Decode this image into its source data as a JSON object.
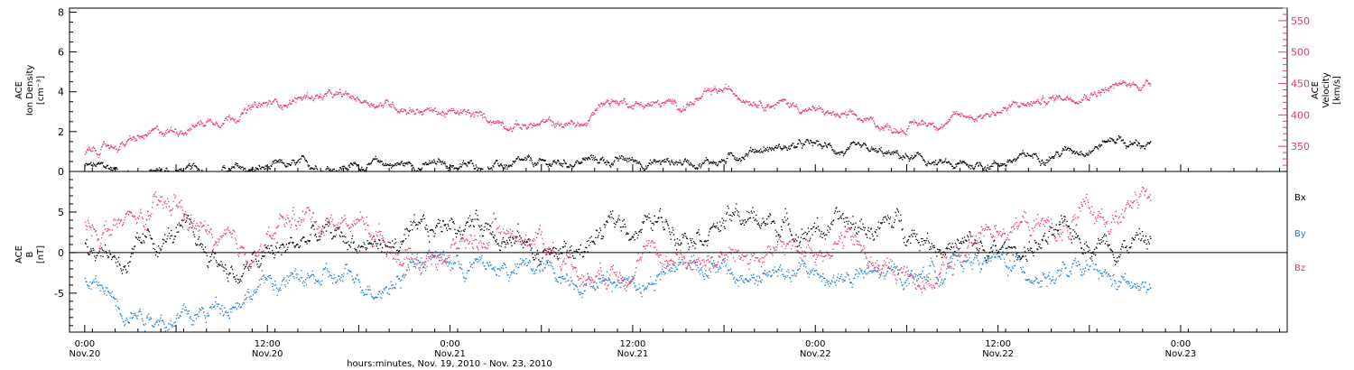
{
  "chart_data": [
    {
      "type": "scatter",
      "panel": "top",
      "left_ylabel": [
        "ACE",
        "Ion Density",
        "[cm⁻³]"
      ],
      "right_ylabel": [
        "ACE",
        "Velocity",
        "[km/s]"
      ],
      "left_yticks": [
        "0",
        "2",
        "4",
        "6",
        "8"
      ],
      "left_ylim": [
        0,
        8.2
      ],
      "right_yticks": [
        "350",
        "400",
        "450",
        "500",
        "550"
      ],
      "right_ylim": [
        310,
        570
      ],
      "series": [
        {
          "axis": "left",
          "color": "#000000",
          "knots": [
            [
              0,
              0.3
            ],
            [
              6,
              0.0
            ],
            [
              22,
              0.1
            ],
            [
              28,
              0.25
            ],
            [
              40,
              0.4
            ],
            [
              50,
              0.3
            ],
            [
              60,
              0.3
            ],
            [
              66,
              0.6
            ],
            [
              76,
              0.5
            ],
            [
              84,
              0.6
            ],
            [
              88,
              1.2
            ],
            [
              96,
              1.3
            ],
            [
              102,
              0.9
            ],
            [
              108,
              0.7
            ],
            [
              114,
              0.2
            ],
            [
              122,
              0.6
            ],
            [
              132,
              1.3
            ],
            [
              136,
              1.8
            ],
            [
              137,
              1.4
            ],
            [
              140,
              1.4
            ]
          ]
        },
        {
          "axis": "right",
          "color": "#e8386a",
          "knots": [
            [
              0,
              340
            ],
            [
              6,
              358
            ],
            [
              12,
              378
            ],
            [
              20,
              405
            ],
            [
              30,
              432
            ],
            [
              38,
              422
            ],
            [
              48,
              403
            ],
            [
              58,
              385
            ],
            [
              66,
              385
            ],
            [
              68,
              425
            ],
            [
              78,
              415
            ],
            [
              84,
              438
            ],
            [
              92,
              420
            ],
            [
              100,
              395
            ],
            [
              106,
              380
            ],
            [
              116,
              398
            ],
            [
              124,
              418
            ],
            [
              132,
              440
            ],
            [
              140,
              452
            ]
          ]
        }
      ]
    },
    {
      "type": "scatter",
      "panel": "bottom",
      "ylabel": [
        "ACE",
        "B",
        "[nT]"
      ],
      "yticks": [
        "-5",
        "0",
        "5"
      ],
      "ylim": [
        -9.8,
        10
      ],
      "legend": [
        "Bx",
        "By",
        "Bz"
      ],
      "series": [
        {
          "name": "Bx",
          "color": "#000000",
          "knots": [
            [
              0,
              2.0
            ],
            [
              6,
              -1.0
            ],
            [
              12,
              2.5
            ],
            [
              20,
              -2.5
            ],
            [
              30,
              2.0
            ],
            [
              40,
              1.0
            ],
            [
              45,
              1.5
            ],
            [
              48,
              4.0
            ],
            [
              54,
              3.8
            ],
            [
              58,
              1.0
            ],
            [
              60,
              0.0
            ],
            [
              64,
              0.0
            ],
            [
              70,
              3.5
            ],
            [
              80,
              3.8
            ],
            [
              86,
              4.2
            ],
            [
              92,
              3.5
            ],
            [
              100,
              3.0
            ],
            [
              108,
              3.5
            ],
            [
              114,
              1.0
            ],
            [
              120,
              -0.5
            ],
            [
              126,
              1.5
            ],
            [
              132,
              2.0
            ],
            [
              140,
              1.5
            ]
          ]
        },
        {
          "name": "By",
          "color": "#1a7fd4",
          "knots": [
            [
              0,
              -3.5
            ],
            [
              6,
              -6.5
            ],
            [
              14,
              -8.5
            ],
            [
              20,
              -5.0
            ],
            [
              24,
              -3.5
            ],
            [
              40,
              -3.5
            ],
            [
              44,
              0.0
            ],
            [
              50,
              -1.5
            ],
            [
              56,
              -2.0
            ],
            [
              62,
              -2.5
            ],
            [
              68,
              -3.0
            ],
            [
              74,
              -3.0
            ],
            [
              80,
              -0.5
            ],
            [
              86,
              -3.5
            ],
            [
              92,
              -2.5
            ],
            [
              100,
              -3.0
            ],
            [
              108,
              -3.0
            ],
            [
              116,
              -0.5
            ],
            [
              124,
              -2.0
            ],
            [
              132,
              -3.0
            ],
            [
              140,
              -5.0
            ]
          ]
        },
        {
          "name": "Bz",
          "color": "#e8386a",
          "knots": [
            [
              0,
              3.0
            ],
            [
              6,
              3.5
            ],
            [
              12,
              5.5
            ],
            [
              20,
              -1.0
            ],
            [
              28,
              4.5
            ],
            [
              36,
              4.0
            ],
            [
              44,
              -1.0
            ],
            [
              52,
              2.0
            ],
            [
              58,
              2.5
            ],
            [
              62,
              0.5
            ],
            [
              66,
              -2.5
            ],
            [
              72,
              -0.5
            ],
            [
              80,
              -0.5
            ],
            [
              90,
              -0.5
            ],
            [
              100,
              2.0
            ],
            [
              104,
              -2.0
            ],
            [
              112,
              -3.0
            ],
            [
              120,
              4.0
            ],
            [
              128,
              3.0
            ],
            [
              132,
              4.0
            ],
            [
              140,
              6.0
            ]
          ]
        }
      ]
    }
  ],
  "x_axis": {
    "xlim": [
      -2,
      158
    ],
    "ticks": [
      {
        "value": 0,
        "time": "0:00",
        "date": "Nov.20"
      },
      {
        "value": 12,
        "time": "",
        "date": ""
      },
      {
        "value": 24,
        "time": "12:00",
        "date": "Nov.20"
      },
      {
        "value": 36,
        "time": "",
        "date": ""
      },
      {
        "value": 48,
        "time": "0:00",
        "date": "Nov.21"
      },
      {
        "value": 60,
        "time": "",
        "date": ""
      },
      {
        "value": 72,
        "time": "12:00",
        "date": "Nov.21"
      },
      {
        "value": 84,
        "time": "",
        "date": ""
      },
      {
        "value": 96,
        "time": "0:00",
        "date": "Nov.22"
      },
      {
        "value": 108,
        "time": "",
        "date": ""
      },
      {
        "value": 120,
        "time": "12:00",
        "date": "Nov.22"
      },
      {
        "value": 132,
        "time": "",
        "date": ""
      },
      {
        "value": 144,
        "time": "0:00",
        "date": "Nov.23"
      }
    ],
    "label": "hours:minutes, Nov. 19, 2010 - Nov. 23, 2010"
  },
  "colors": {
    "black": "#000000",
    "blue": "#1a7fd4",
    "pink": "#e8386a"
  }
}
